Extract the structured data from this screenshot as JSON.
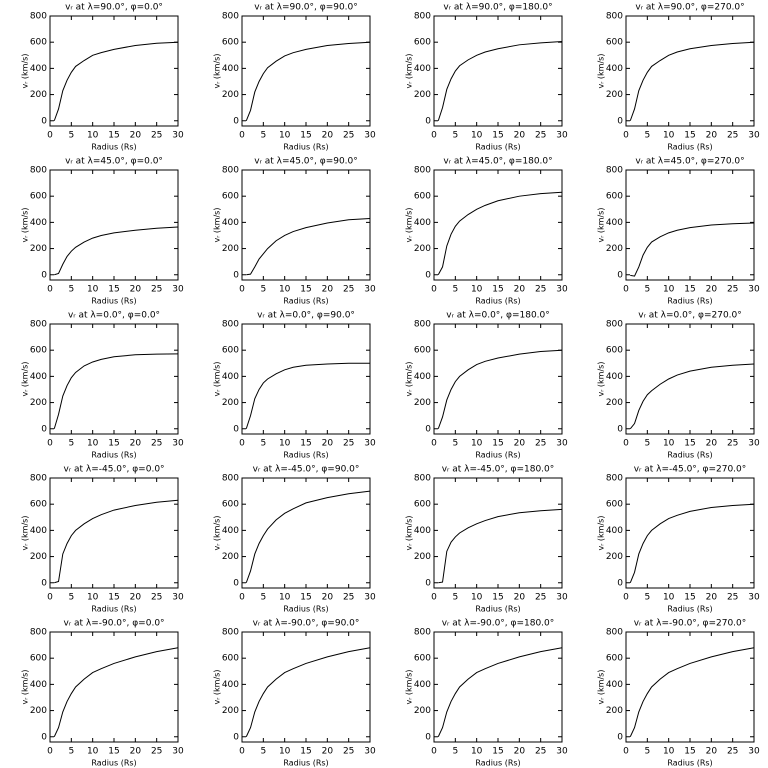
{
  "chart_data": [
    {
      "type": "line",
      "title": "vᵣ at λ=90.0°, φ=0.0°",
      "xlabel": "Radius (Rs)",
      "ylabel": "vᵣ (km/s)",
      "x": [
        1,
        2,
        3,
        4,
        5,
        6,
        8,
        10,
        12,
        15,
        20,
        25,
        30
      ],
      "values": [
        0,
        90,
        230,
        310,
        370,
        415,
        460,
        500,
        520,
        545,
        575,
        592,
        600
      ],
      "xlim": [
        0,
        30
      ],
      "ylim": [
        -40,
        800
      ],
      "xticks": [
        0,
        5,
        10,
        15,
        20,
        25,
        30
      ],
      "yticks": [
        0,
        200,
        400,
        600,
        800
      ]
    },
    {
      "type": "line",
      "title": "vᵣ at λ=90.0°, φ=90.0°",
      "xlabel": "Radius (Rs)",
      "ylabel": "vᵣ (km/s)",
      "x": [
        1,
        2,
        3,
        4,
        5,
        6,
        8,
        10,
        12,
        15,
        20,
        25,
        30
      ],
      "values": [
        0,
        80,
        220,
        300,
        360,
        405,
        455,
        495,
        520,
        545,
        575,
        590,
        600
      ],
      "xlim": [
        0,
        30
      ],
      "ylim": [
        -40,
        800
      ],
      "xticks": [
        0,
        5,
        10,
        15,
        20,
        25,
        30
      ],
      "yticks": [
        0,
        200,
        400,
        600,
        800
      ]
    },
    {
      "type": "line",
      "title": "vᵣ at λ=90.0°, φ=180.0°",
      "xlabel": "Radius (Rs)",
      "ylabel": "vᵣ (km/s)",
      "x": [
        1,
        2,
        3,
        4,
        5,
        6,
        8,
        10,
        12,
        15,
        20,
        25,
        30
      ],
      "values": [
        0,
        100,
        240,
        320,
        380,
        420,
        465,
        500,
        525,
        550,
        580,
        595,
        605
      ],
      "xlim": [
        0,
        30
      ],
      "ylim": [
        -40,
        800
      ],
      "xticks": [
        0,
        5,
        10,
        15,
        20,
        25,
        30
      ],
      "yticks": [
        0,
        200,
        400,
        600,
        800
      ]
    },
    {
      "type": "line",
      "title": "vᵣ at λ=90.0°, φ=270.0°",
      "xlabel": "Radius (Rs)",
      "ylabel": "vᵣ (km/s)",
      "x": [
        1,
        2,
        3,
        4,
        5,
        6,
        8,
        10,
        12,
        15,
        20,
        25,
        30
      ],
      "values": [
        0,
        90,
        230,
        310,
        370,
        415,
        460,
        500,
        525,
        550,
        575,
        590,
        600
      ],
      "xlim": [
        0,
        30
      ],
      "ylim": [
        -40,
        800
      ],
      "xticks": [
        0,
        5,
        10,
        15,
        20,
        25,
        30
      ],
      "yticks": [
        0,
        200,
        400,
        600,
        800
      ]
    },
    {
      "type": "line",
      "title": "vᵣ at λ=45.0°, φ=0.0°",
      "xlabel": "Radius (Rs)",
      "ylabel": "vᵣ (km/s)",
      "x": [
        1,
        2,
        3,
        4,
        5,
        6,
        8,
        10,
        12,
        15,
        20,
        25,
        30
      ],
      "values": [
        0,
        10,
        80,
        140,
        180,
        210,
        250,
        280,
        300,
        320,
        340,
        355,
        365
      ],
      "xlim": [
        0,
        30
      ],
      "ylim": [
        -40,
        800
      ],
      "xticks": [
        0,
        5,
        10,
        15,
        20,
        25,
        30
      ],
      "yticks": [
        0,
        200,
        400,
        600,
        800
      ]
    },
    {
      "type": "line",
      "title": "vᵣ at λ=45.0°, φ=90.0°",
      "xlabel": "Radius (Rs)",
      "ylabel": "vᵣ (km/s)",
      "x": [
        1,
        2,
        3,
        4,
        5,
        6,
        8,
        10,
        12,
        15,
        20,
        25,
        30
      ],
      "values": [
        0,
        5,
        60,
        120,
        160,
        200,
        260,
        300,
        330,
        360,
        395,
        420,
        430
      ],
      "xlim": [
        0,
        30
      ],
      "ylim": [
        -40,
        800
      ],
      "xticks": [
        0,
        5,
        10,
        15,
        20,
        25,
        30
      ],
      "yticks": [
        0,
        200,
        400,
        600,
        800
      ]
    },
    {
      "type": "line",
      "title": "vᵣ at λ=45.0°, φ=180.0°",
      "xlabel": "Radius (Rs)",
      "ylabel": "vᵣ (km/s)",
      "x": [
        1,
        2,
        3,
        4,
        5,
        6,
        8,
        10,
        12,
        15,
        20,
        25,
        30
      ],
      "values": [
        0,
        60,
        220,
        310,
        370,
        410,
        460,
        500,
        530,
        565,
        600,
        620,
        630
      ],
      "xlim": [
        0,
        30
      ],
      "ylim": [
        -40,
        800
      ],
      "xticks": [
        0,
        5,
        10,
        15,
        20,
        25,
        30
      ],
      "yticks": [
        0,
        200,
        400,
        600,
        800
      ]
    },
    {
      "type": "line",
      "title": "vᵣ at λ=45.0°, φ=270.0°",
      "xlabel": "Radius (Rs)",
      "ylabel": "vᵣ (km/s)",
      "x": [
        1,
        2,
        3,
        4,
        5,
        6,
        8,
        10,
        12,
        15,
        20,
        25,
        30
      ],
      "values": [
        -5,
        -10,
        60,
        150,
        210,
        250,
        290,
        320,
        340,
        360,
        380,
        390,
        395
      ],
      "xlim": [
        0,
        30
      ],
      "ylim": [
        -40,
        800
      ],
      "xticks": [
        0,
        5,
        10,
        15,
        20,
        25,
        30
      ],
      "yticks": [
        0,
        200,
        400,
        600,
        800
      ]
    },
    {
      "type": "line",
      "title": "vᵣ at λ=0.0°, φ=0.0°",
      "xlabel": "Radius (Rs)",
      "ylabel": "vᵣ (km/s)",
      "x": [
        1,
        2,
        3,
        4,
        5,
        6,
        8,
        10,
        12,
        15,
        20,
        25,
        30
      ],
      "values": [
        0,
        110,
        250,
        330,
        390,
        430,
        480,
        510,
        530,
        550,
        565,
        570,
        572
      ],
      "xlim": [
        0,
        30
      ],
      "ylim": [
        -40,
        800
      ],
      "xticks": [
        0,
        5,
        10,
        15,
        20,
        25,
        30
      ],
      "yticks": [
        0,
        200,
        400,
        600,
        800
      ]
    },
    {
      "type": "line",
      "title": "vᵣ at λ=0.0°, φ=90.0°",
      "xlabel": "Radius (Rs)",
      "ylabel": "vᵣ (km/s)",
      "x": [
        1,
        2,
        3,
        4,
        5,
        6,
        8,
        10,
        12,
        15,
        20,
        25,
        30
      ],
      "values": [
        0,
        100,
        230,
        300,
        350,
        380,
        420,
        450,
        470,
        485,
        495,
        500,
        500
      ],
      "xlim": [
        0,
        30
      ],
      "ylim": [
        -40,
        800
      ],
      "xticks": [
        0,
        5,
        10,
        15,
        20,
        25,
        30
      ],
      "yticks": [
        0,
        200,
        400,
        600,
        800
      ]
    },
    {
      "type": "line",
      "title": "vᵣ at λ=0.0°, φ=180.0°",
      "xlabel": "Radius (Rs)",
      "ylabel": "vᵣ (km/s)",
      "x": [
        1,
        2,
        3,
        4,
        5,
        6,
        8,
        10,
        12,
        15,
        20,
        25,
        30
      ],
      "values": [
        0,
        90,
        220,
        300,
        360,
        400,
        450,
        490,
        515,
        540,
        570,
        590,
        600
      ],
      "xlim": [
        0,
        30
      ],
      "ylim": [
        -40,
        800
      ],
      "xticks": [
        0,
        5,
        10,
        15,
        20,
        25,
        30
      ],
      "yticks": [
        0,
        200,
        400,
        600,
        800
      ]
    },
    {
      "type": "line",
      "title": "vᵣ at λ=0.0°, φ=270.0°",
      "xlabel": "Radius (Rs)",
      "ylabel": "vᵣ (km/s)",
      "x": [
        1,
        2,
        3,
        4,
        5,
        6,
        8,
        10,
        12,
        15,
        20,
        25,
        30
      ],
      "values": [
        0,
        40,
        140,
        210,
        260,
        290,
        340,
        380,
        410,
        440,
        470,
        485,
        495
      ],
      "xlim": [
        0,
        30
      ],
      "ylim": [
        -40,
        800
      ],
      "xticks": [
        0,
        5,
        10,
        15,
        20,
        25,
        30
      ],
      "yticks": [
        0,
        200,
        400,
        600,
        800
      ]
    },
    {
      "type": "line",
      "title": "vᵣ at λ=-45.0°, φ=0.0°",
      "xlabel": "Radius (Rs)",
      "ylabel": "vᵣ (km/s)",
      "x": [
        1,
        2,
        3,
        4,
        5,
        6,
        8,
        10,
        12,
        15,
        20,
        25,
        30
      ],
      "values": [
        0,
        10,
        220,
        300,
        360,
        400,
        450,
        490,
        520,
        555,
        590,
        615,
        630
      ],
      "xlim": [
        0,
        30
      ],
      "ylim": [
        -40,
        800
      ],
      "xticks": [
        0,
        5,
        10,
        15,
        20,
        25,
        30
      ],
      "yticks": [
        0,
        200,
        400,
        600,
        800
      ]
    },
    {
      "type": "line",
      "title": "vᵣ at λ=-45.0°, φ=90.0°",
      "xlabel": "Radius (Rs)",
      "ylabel": "vᵣ (km/s)",
      "x": [
        1,
        2,
        3,
        4,
        5,
        6,
        8,
        10,
        12,
        15,
        20,
        25,
        30
      ],
      "values": [
        0,
        90,
        220,
        300,
        360,
        410,
        480,
        530,
        565,
        610,
        650,
        680,
        700
      ],
      "xlim": [
        0,
        30
      ],
      "ylim": [
        -40,
        800
      ],
      "xticks": [
        0,
        5,
        10,
        15,
        20,
        25,
        30
      ],
      "yticks": [
        0,
        200,
        400,
        600,
        800
      ]
    },
    {
      "type": "line",
      "title": "vᵣ at λ=-45.0°, φ=180.0°",
      "xlabel": "Radius (Rs)",
      "ylabel": "vᵣ (km/s)",
      "x": [
        1,
        2,
        3,
        4,
        5,
        6,
        8,
        10,
        12,
        15,
        20,
        25,
        30
      ],
      "values": [
        0,
        5,
        240,
        310,
        350,
        380,
        420,
        450,
        475,
        505,
        535,
        550,
        560
      ],
      "xlim": [
        0,
        30
      ],
      "ylim": [
        -40,
        800
      ],
      "xticks": [
        0,
        5,
        10,
        15,
        20,
        25,
        30
      ],
      "yticks": [
        0,
        200,
        400,
        600,
        800
      ]
    },
    {
      "type": "line",
      "title": "vᵣ at λ=-45.0°, φ=270.0°",
      "xlabel": "Radius (Rs)",
      "ylabel": "vᵣ (km/s)",
      "x": [
        1,
        2,
        3,
        4,
        5,
        6,
        8,
        10,
        12,
        15,
        20,
        25,
        30
      ],
      "values": [
        0,
        80,
        220,
        300,
        360,
        400,
        450,
        490,
        515,
        545,
        575,
        590,
        600
      ],
      "xlim": [
        0,
        30
      ],
      "ylim": [
        -40,
        800
      ],
      "xticks": [
        0,
        5,
        10,
        15,
        20,
        25,
        30
      ],
      "yticks": [
        0,
        200,
        400,
        600,
        800
      ]
    },
    {
      "type": "line",
      "title": "vᵣ at λ=-90.0°, φ=0.0°",
      "xlabel": "Radius (Rs)",
      "ylabel": "vᵣ (km/s)",
      "x": [
        1,
        2,
        3,
        4,
        5,
        6,
        8,
        10,
        12,
        15,
        20,
        25,
        30
      ],
      "values": [
        0,
        70,
        190,
        270,
        330,
        380,
        440,
        490,
        520,
        560,
        610,
        650,
        680
      ],
      "xlim": [
        0,
        30
      ],
      "ylim": [
        -40,
        800
      ],
      "xticks": [
        0,
        5,
        10,
        15,
        20,
        25,
        30
      ],
      "yticks": [
        0,
        200,
        400,
        600,
        800
      ]
    },
    {
      "type": "line",
      "title": "vᵣ at λ=-90.0°, φ=90.0°",
      "xlabel": "Radius (Rs)",
      "ylabel": "vᵣ (km/s)",
      "x": [
        1,
        2,
        3,
        4,
        5,
        6,
        8,
        10,
        12,
        15,
        20,
        25,
        30
      ],
      "values": [
        0,
        70,
        190,
        270,
        330,
        380,
        440,
        490,
        520,
        560,
        610,
        650,
        680
      ],
      "xlim": [
        0,
        30
      ],
      "ylim": [
        -40,
        800
      ],
      "xticks": [
        0,
        5,
        10,
        15,
        20,
        25,
        30
      ],
      "yticks": [
        0,
        200,
        400,
        600,
        800
      ]
    },
    {
      "type": "line",
      "title": "vᵣ at λ=-90.0°, φ=180.0°",
      "xlabel": "Radius (Rs)",
      "ylabel": "vᵣ (km/s)",
      "x": [
        1,
        2,
        3,
        4,
        5,
        6,
        8,
        10,
        12,
        15,
        20,
        25,
        30
      ],
      "values": [
        0,
        70,
        190,
        270,
        330,
        380,
        440,
        490,
        520,
        560,
        610,
        650,
        680
      ],
      "xlim": [
        0,
        30
      ],
      "ylim": [
        -40,
        800
      ],
      "xticks": [
        0,
        5,
        10,
        15,
        20,
        25,
        30
      ],
      "yticks": [
        0,
        200,
        400,
        600,
        800
      ]
    },
    {
      "type": "line",
      "title": "vᵣ at λ=-90.0°, φ=270.0°",
      "xlabel": "Radius (Rs)",
      "ylabel": "vᵣ (km/s)",
      "x": [
        1,
        2,
        3,
        4,
        5,
        6,
        8,
        10,
        12,
        15,
        20,
        25,
        30
      ],
      "values": [
        0,
        70,
        190,
        270,
        330,
        380,
        440,
        490,
        520,
        560,
        610,
        650,
        680
      ],
      "xlim": [
        0,
        30
      ],
      "ylim": [
        -40,
        800
      ],
      "xticks": [
        0,
        5,
        10,
        15,
        20,
        25,
        30
      ],
      "yticks": [
        0,
        200,
        400,
        600,
        800
      ]
    }
  ]
}
